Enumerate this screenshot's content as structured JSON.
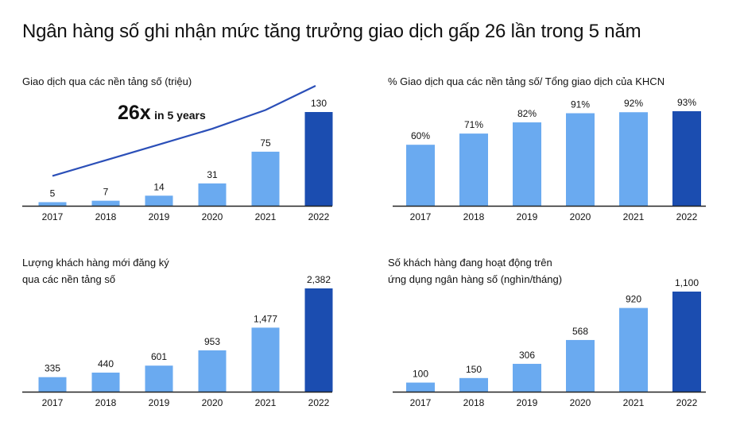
{
  "page_title": "Ngân hàng số ghi nhận mức tăng trưởng giao dịch gấp 26 lần trong 5 năm",
  "colors": {
    "bar_light": "#6aaaf0",
    "bar_dark": "#1b4db0",
    "axis": "#222222",
    "trend_line": "#2b4fb8"
  },
  "chart_data": [
    {
      "type": "bar",
      "title": [
        "Giao dịch qua các nền tảng số (triệu)"
      ],
      "categories": [
        "2017",
        "2018",
        "2019",
        "2020",
        "2021",
        "2022"
      ],
      "values": [
        5,
        7,
        14,
        31,
        75,
        130
      ],
      "labels": [
        "5",
        "7",
        "14",
        "31",
        "75",
        "130"
      ],
      "highlight_last": true,
      "annotation": {
        "big": "26x",
        "small": "in 5 years"
      },
      "trend_line": [
        5,
        26.8,
        48.6,
        70.4,
        96.4,
        130
      ]
    },
    {
      "type": "bar",
      "title": [
        "% Giao dịch qua các nền tảng số/ Tổng giao dịch của KHCN"
      ],
      "categories": [
        "2017",
        "2018",
        "2019",
        "2020",
        "2021",
        "2022"
      ],
      "values": [
        60,
        71,
        82,
        91,
        92,
        93
      ],
      "labels": [
        "60%",
        "71%",
        "82%",
        "91%",
        "92%",
        "93%"
      ],
      "highlight_last": true
    },
    {
      "type": "bar",
      "title": [
        "Lượng khách hàng mới đăng ký",
        "qua các nền tảng số"
      ],
      "categories": [
        "2017",
        "2018",
        "2019",
        "2020",
        "2021",
        "2022"
      ],
      "values": [
        335,
        440,
        601,
        953,
        1477,
        2382
      ],
      "labels": [
        "335",
        "440",
        "601",
        "953",
        "1,477",
        "2,382"
      ],
      "highlight_last": true
    },
    {
      "type": "bar",
      "title": [
        "Số khách hàng đang hoạt động trên",
        "ứng dụng ngân hàng số (nghìn/tháng)"
      ],
      "categories": [
        "2017",
        "2018",
        "2019",
        "2020",
        "2021",
        "2022"
      ],
      "values": [
        100,
        150,
        306,
        568,
        920,
        1100
      ],
      "labels": [
        "100",
        "150",
        "306",
        "568",
        "920",
        "1,100"
      ],
      "highlight_last": true
    }
  ]
}
